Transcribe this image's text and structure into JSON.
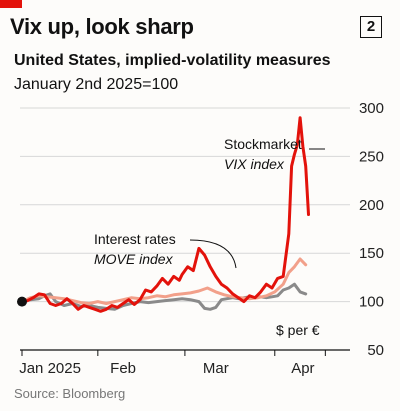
{
  "header": {
    "title": "Vix up, look sharp",
    "chart_number": "2",
    "subtitle": "United States, implied-volatility measures",
    "note": "January 2nd 2025=100"
  },
  "source": "Source: Bloomberg",
  "colors": {
    "vix": "#e3120b",
    "move": "#f2a08a",
    "euro": "#8a8a8a",
    "accent": "#e3120b"
  },
  "chart_data": {
    "type": "line",
    "title": "Vix up, look sharp",
    "subtitle": "United States, implied-volatility measures",
    "ylabel": "",
    "xlabel": "",
    "ylim": [
      50,
      300
    ],
    "yticks": [
      50,
      100,
      150,
      200,
      250,
      300
    ],
    "yticks_text": [
      "50",
      "100",
      "150",
      "200",
      "250",
      "300"
    ],
    "xlim": [
      0,
      115
    ],
    "month_labels": [
      {
        "label": "Jan 2025",
        "x": 10
      },
      {
        "label": "Feb",
        "x": 36
      },
      {
        "label": "Mar",
        "x": 69
      },
      {
        "label": "Apr",
        "x": 100
      }
    ],
    "annotations": [
      {
        "text": "Stockmarket",
        "italic": "VIX index"
      },
      {
        "text": "Interest rates",
        "italic": "MOVE index"
      },
      {
        "text": "$ per €"
      }
    ],
    "series": [
      {
        "name": "VIX index",
        "role": "vix",
        "points": [
          [
            0,
            100
          ],
          [
            2,
            101
          ],
          [
            4,
            104
          ],
          [
            6,
            108
          ],
          [
            8,
            107
          ],
          [
            10,
            98
          ],
          [
            12,
            96
          ],
          [
            14,
            98
          ],
          [
            16,
            103
          ],
          [
            18,
            98
          ],
          [
            20,
            92
          ],
          [
            22,
            96
          ],
          [
            24,
            94
          ],
          [
            26,
            92
          ],
          [
            28,
            90
          ],
          [
            30,
            92
          ],
          [
            32,
            96
          ],
          [
            34,
            94
          ],
          [
            36,
            98
          ],
          [
            38,
            102
          ],
          [
            40,
            97
          ],
          [
            42,
            102
          ],
          [
            44,
            112
          ],
          [
            46,
            110
          ],
          [
            48,
            116
          ],
          [
            50,
            124
          ],
          [
            52,
            118
          ],
          [
            54,
            126
          ],
          [
            56,
            122
          ],
          [
            57,
            128
          ],
          [
            59,
            136
          ],
          [
            61,
            132
          ],
          [
            63,
            155
          ],
          [
            65,
            148
          ],
          [
            67,
            136
          ],
          [
            69,
            126
          ],
          [
            71,
            118
          ],
          [
            73,
            114
          ],
          [
            75,
            108
          ],
          [
            77,
            104
          ],
          [
            79,
            100
          ],
          [
            81,
            106
          ],
          [
            83,
            104
          ],
          [
            85,
            110
          ],
          [
            87,
            118
          ],
          [
            89,
            114
          ],
          [
            91,
            124
          ],
          [
            93,
            126
          ],
          [
            95,
            170
          ],
          [
            96,
            240
          ],
          [
            97,
            252
          ],
          [
            98,
            262
          ],
          [
            99,
            290
          ],
          [
            100,
            260
          ],
          [
            101,
            240
          ],
          [
            102,
            190
          ]
        ]
      },
      {
        "name": "MOVE index",
        "role": "move",
        "points": [
          [
            0,
            100
          ],
          [
            3,
            104
          ],
          [
            6,
            106
          ],
          [
            9,
            105
          ],
          [
            12,
            104
          ],
          [
            15,
            103
          ],
          [
            18,
            101
          ],
          [
            21,
            99
          ],
          [
            24,
            98
          ],
          [
            27,
            100
          ],
          [
            30,
            98
          ],
          [
            33,
            100
          ],
          [
            36,
            102
          ],
          [
            39,
            104
          ],
          [
            42,
            103
          ],
          [
            45,
            104
          ],
          [
            48,
            106
          ],
          [
            51,
            105
          ],
          [
            54,
            107
          ],
          [
            57,
            108
          ],
          [
            60,
            109
          ],
          [
            63,
            111
          ],
          [
            66,
            114
          ],
          [
            69,
            110
          ],
          [
            72,
            107
          ],
          [
            75,
            105
          ],
          [
            78,
            104
          ],
          [
            81,
            103
          ],
          [
            84,
            104
          ],
          [
            87,
            106
          ],
          [
            90,
            110
          ],
          [
            93,
            118
          ],
          [
            95,
            130
          ],
          [
            97,
            136
          ],
          [
            99,
            144
          ],
          [
            101,
            138
          ]
        ]
      },
      {
        "name": "$ per €",
        "role": "euro",
        "points": [
          [
            0,
            100
          ],
          [
            3,
            102
          ],
          [
            6,
            103
          ],
          [
            8,
            106
          ],
          [
            10,
            108
          ],
          [
            12,
            100
          ],
          [
            15,
            96
          ],
          [
            18,
            98
          ],
          [
            21,
            95
          ],
          [
            24,
            96
          ],
          [
            27,
            94
          ],
          [
            30,
            93
          ],
          [
            33,
            92
          ],
          [
            36,
            96
          ],
          [
            39,
            98
          ],
          [
            42,
            100
          ],
          [
            45,
            99
          ],
          [
            48,
            100
          ],
          [
            51,
            101
          ],
          [
            54,
            102
          ],
          [
            57,
            103
          ],
          [
            60,
            102
          ],
          [
            63,
            100
          ],
          [
            65,
            93
          ],
          [
            67,
            92
          ],
          [
            69,
            94
          ],
          [
            71,
            102
          ],
          [
            73,
            103
          ],
          [
            75,
            104
          ],
          [
            77,
            103
          ],
          [
            79,
            104
          ],
          [
            81,
            105
          ],
          [
            83,
            104
          ],
          [
            85,
            105
          ],
          [
            87,
            104
          ],
          [
            89,
            105
          ],
          [
            91,
            106
          ],
          [
            93,
            112
          ],
          [
            95,
            114
          ],
          [
            97,
            118
          ],
          [
            99,
            110
          ],
          [
            101,
            108
          ]
        ]
      }
    ]
  }
}
